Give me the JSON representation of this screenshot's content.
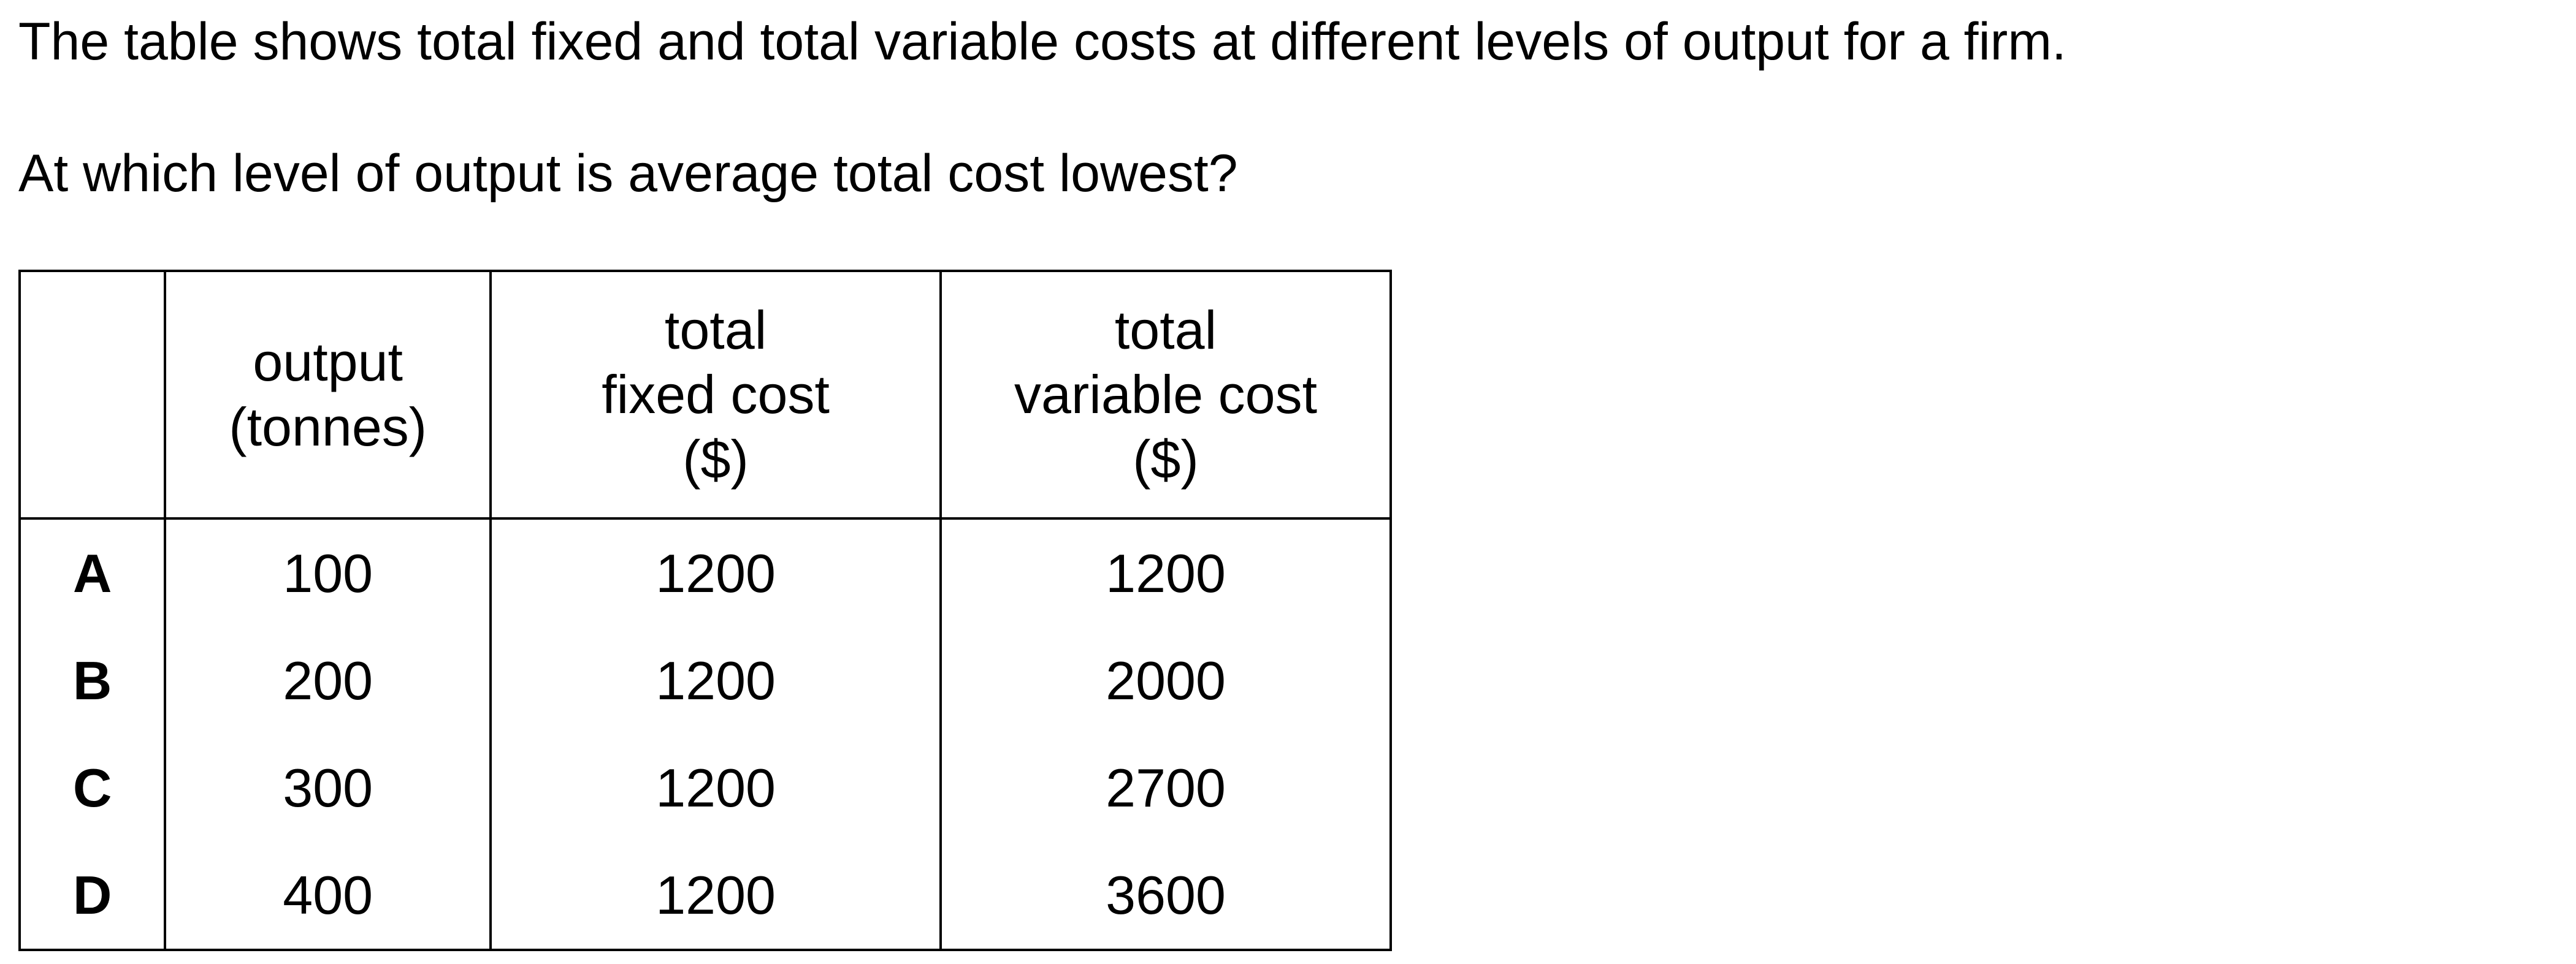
{
  "intro": "The table shows total fixed and total variable costs at different levels of output for a firm.",
  "question": "At which level of output is average total cost lowest?",
  "table": {
    "headers": [
      [],
      [
        "output",
        "(tonnes)"
      ],
      [
        "total",
        "fixed cost",
        "($)"
      ],
      [
        "total",
        "variable cost",
        "($)"
      ]
    ],
    "rows": [
      {
        "key": "A",
        "output": "100",
        "fixed": "1200",
        "variable": "1200"
      },
      {
        "key": "B",
        "output": "200",
        "fixed": "1200",
        "variable": "2000"
      },
      {
        "key": "C",
        "output": "300",
        "fixed": "1200",
        "variable": "2700"
      },
      {
        "key": "D",
        "output": "400",
        "fixed": "1200",
        "variable": "3600"
      }
    ]
  }
}
